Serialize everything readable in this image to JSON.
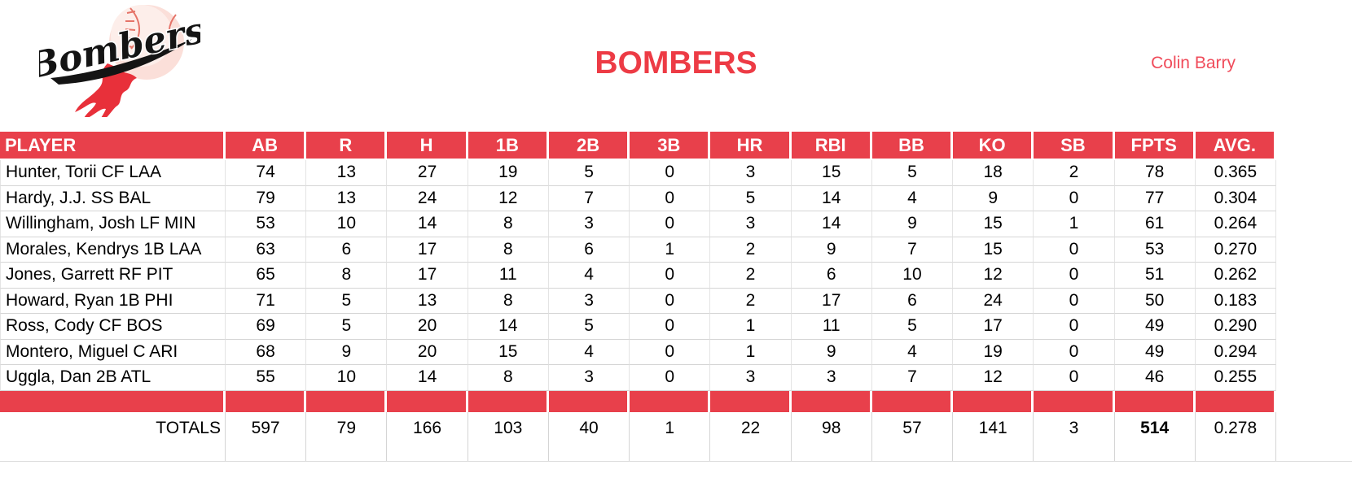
{
  "header": {
    "team_name": "BOMBERS",
    "owner_name": "Colin Barry",
    "logo_text": "Bombers"
  },
  "colors": {
    "header_red": "#E8404B",
    "title_red": "#ED3B45",
    "owner_red": "#F04B5A",
    "flame_red": "#E8303A",
    "ball_pink": "#FBDFD9",
    "stitch_red": "#E57368",
    "logo_black": "#141414",
    "gridline_gray": "#D5D5D5"
  },
  "table": {
    "columns": [
      "PLAYER",
      "AB",
      "R",
      "H",
      "1B",
      "2B",
      "3B",
      "HR",
      "RBI",
      "BB",
      "KO",
      "SB",
      "FPTS",
      "AVG."
    ],
    "players": [
      {
        "name": "Hunter, Torii CF LAA",
        "stats": [
          "74",
          "13",
          "27",
          "19",
          "5",
          "0",
          "3",
          "15",
          "5",
          "18",
          "2",
          "78",
          "0.365"
        ]
      },
      {
        "name": "Hardy, J.J. SS BAL",
        "stats": [
          "79",
          "13",
          "24",
          "12",
          "7",
          "0",
          "5",
          "14",
          "4",
          "9",
          "0",
          "77",
          "0.304"
        ]
      },
      {
        "name": "Willingham, Josh LF MIN",
        "stats": [
          "53",
          "10",
          "14",
          "8",
          "3",
          "0",
          "3",
          "14",
          "9",
          "15",
          "1",
          "61",
          "0.264"
        ]
      },
      {
        "name": "Morales, Kendrys 1B LAA",
        "stats": [
          "63",
          "6",
          "17",
          "8",
          "6",
          "1",
          "2",
          "9",
          "7",
          "15",
          "0",
          "53",
          "0.270"
        ]
      },
      {
        "name": "Jones, Garrett RF PIT",
        "stats": [
          "65",
          "8",
          "17",
          "11",
          "4",
          "0",
          "2",
          "6",
          "10",
          "12",
          "0",
          "51",
          "0.262"
        ]
      },
      {
        "name": "Howard, Ryan 1B PHI",
        "stats": [
          "71",
          "5",
          "13",
          "8",
          "3",
          "0",
          "2",
          "17",
          "6",
          "24",
          "0",
          "50",
          "0.183"
        ]
      },
      {
        "name": "Ross, Cody CF BOS",
        "stats": [
          "69",
          "5",
          "20",
          "14",
          "5",
          "0",
          "1",
          "11",
          "5",
          "17",
          "0",
          "49",
          "0.290"
        ]
      },
      {
        "name": "Montero, Miguel C ARI",
        "stats": [
          "68",
          "9",
          "20",
          "15",
          "4",
          "0",
          "1",
          "9",
          "4",
          "19",
          "0",
          "49",
          "0.294"
        ]
      },
      {
        "name": "Uggla, Dan 2B ATL",
        "stats": [
          "55",
          "10",
          "14",
          "8",
          "3",
          "0",
          "3",
          "3",
          "7",
          "12",
          "0",
          "46",
          "0.255"
        ]
      }
    ],
    "totals_label": "TOTALS",
    "totals": [
      "597",
      "79",
      "166",
      "103",
      "40",
      "1",
      "22",
      "98",
      "57",
      "141",
      "3",
      "514",
      "0.278"
    ],
    "fpts_total_column_index": 11
  }
}
